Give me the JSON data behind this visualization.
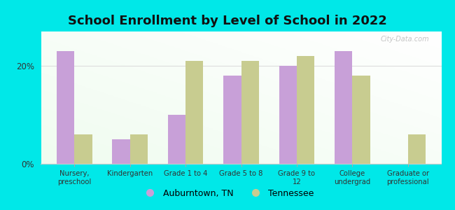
{
  "title": "School Enrollment by Level of School in 2022",
  "categories": [
    "Nursery,\npreschool",
    "Kindergarten",
    "Grade 1 to 4",
    "Grade 5 to 8",
    "Grade 9 to\n12",
    "College\nundergrad",
    "Graduate or\nprofessional"
  ],
  "auburntown": [
    23,
    5,
    10,
    18,
    20,
    23,
    0
  ],
  "tennessee": [
    6,
    6,
    21,
    21,
    22,
    18,
    6
  ],
  "auburntown_color": "#c8a0d8",
  "tennessee_color": "#c8cc90",
  "background_outer": "#00e8e8",
  "background_plot": "#e8f5e0",
  "bar_width": 0.32,
  "ylim": [
    0,
    27
  ],
  "yticks": [
    0,
    20
  ],
  "ytick_labels": [
    "0%",
    "20%"
  ],
  "legend_auburntown": "Auburntown, TN",
  "legend_tennessee": "Tennessee",
  "title_fontsize": 13,
  "title_color": "#111111",
  "watermark": "City-Data.com",
  "grid_color": "#dddddd",
  "spine_color": "#cccccc"
}
